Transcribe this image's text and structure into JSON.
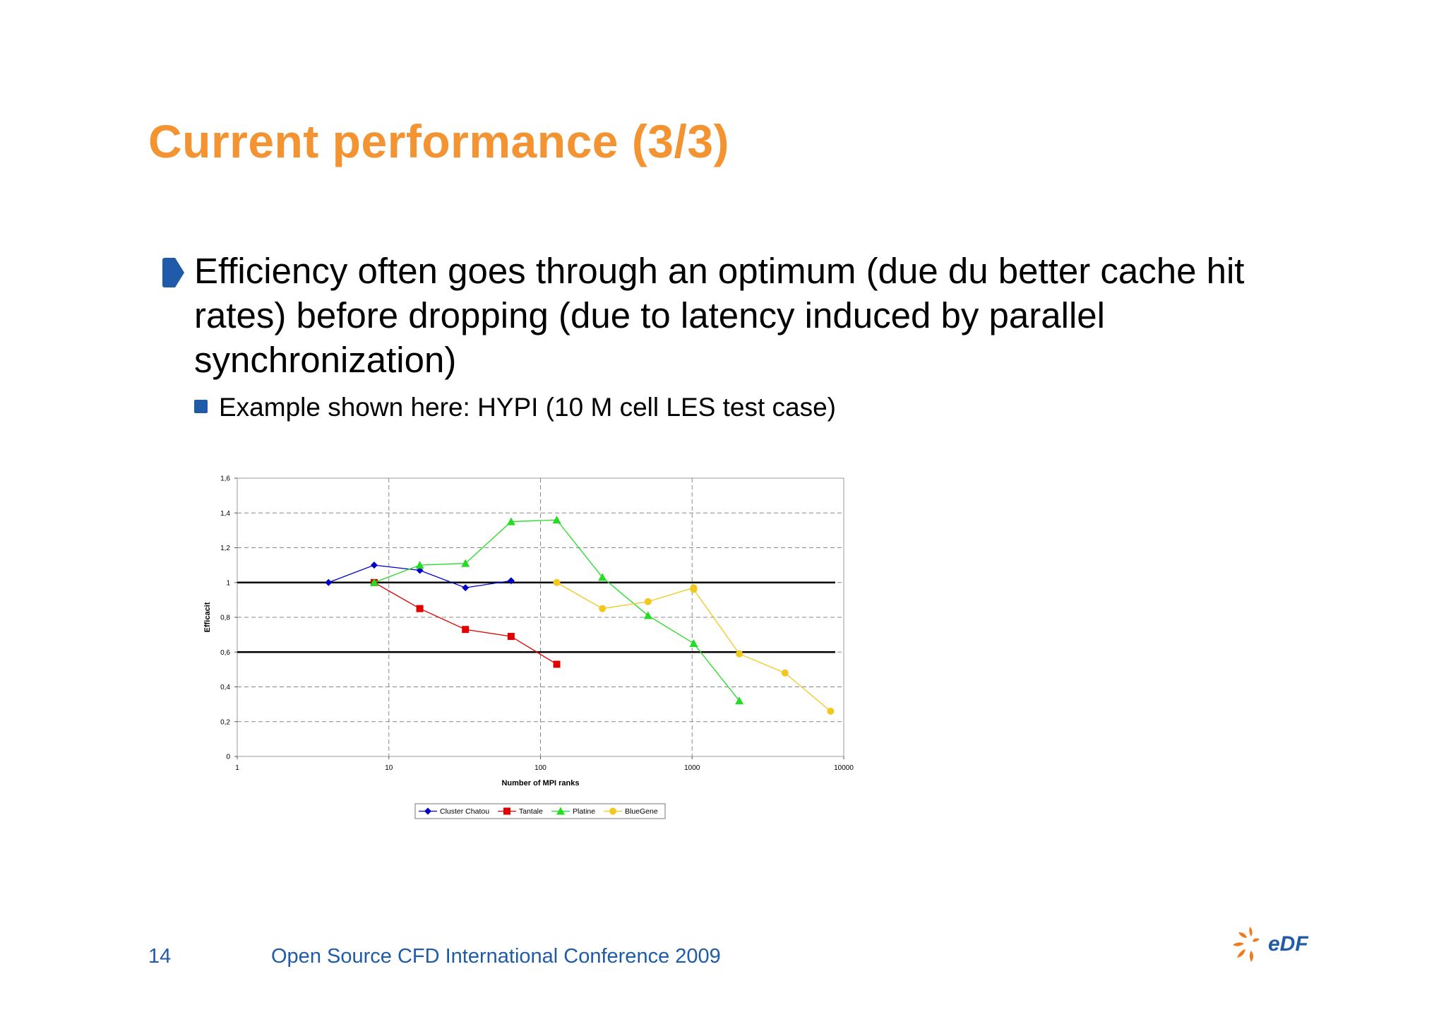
{
  "slide": {
    "title": "Current performance (3/3)",
    "bullet": "Efficiency often goes through an optimum (due du better cache hit rates) before dropping (due to latency induced by parallel synchronization)",
    "sub_bullet": "Example shown here: HYPI (10 M cell LES test case)",
    "page_number": "14",
    "footer": "Open Source CFD International Conference 2009",
    "logo_text": "eDF"
  },
  "colors": {
    "title": "#f39331",
    "footer": "#1f5ba8",
    "cluster_chatou": "#0000cc",
    "tantale": "#e00000",
    "platine": "#22dd22",
    "bluegene": "#f2c81e"
  },
  "chart_data": {
    "type": "line",
    "x_scale": "log",
    "xlim": [
      1,
      10000
    ],
    "ylim": [
      0,
      1.6
    ],
    "xlabel": "Number of MPI ranks",
    "ylabel": "Efficacit",
    "x_ticks": [
      {
        "value": 1,
        "label": "1"
      },
      {
        "value": 10,
        "label": "10"
      },
      {
        "value": 100,
        "label": "100"
      },
      {
        "value": 1000,
        "label": "1000"
      },
      {
        "value": 10000,
        "label": "10000"
      }
    ],
    "y_ticks": [
      {
        "value": 0,
        "label": "0"
      },
      {
        "value": 0.2,
        "label": "0,2"
      },
      {
        "value": 0.4,
        "label": "0,4"
      },
      {
        "value": 0.6,
        "label": "0,6"
      },
      {
        "value": 0.8,
        "label": "0,8"
      },
      {
        "value": 1,
        "label": "1"
      },
      {
        "value": 1.2,
        "label": "1,2"
      },
      {
        "value": 1.4,
        "label": "1,4"
      },
      {
        "value": 1.6,
        "label": "1,6"
      }
    ],
    "reference_lines": [
      1.0,
      0.6
    ],
    "grid": "dashed",
    "legend_position": "bottom",
    "series": [
      {
        "name": "Cluster Chatou",
        "marker": "diamond",
        "color": "#0000cc",
        "x": [
          4,
          8,
          16,
          32,
          64
        ],
        "y": [
          1.0,
          1.1,
          1.07,
          0.97,
          1.01
        ]
      },
      {
        "name": "Tantale",
        "marker": "square",
        "color": "#e00000",
        "x": [
          8,
          16,
          32,
          64,
          128
        ],
        "y": [
          1.0,
          0.85,
          0.73,
          0.69,
          0.53
        ]
      },
      {
        "name": "Platine",
        "marker": "triangle",
        "color": "#22dd22",
        "x": [
          8,
          16,
          32,
          64,
          128,
          256,
          512,
          1024,
          2048
        ],
        "y": [
          1.0,
          1.1,
          1.11,
          1.35,
          1.36,
          1.03,
          0.81,
          0.65,
          0.32
        ]
      },
      {
        "name": "BlueGene",
        "marker": "circle",
        "color": "#f2c81e",
        "x": [
          128,
          256,
          512,
          1024,
          1024,
          2048,
          4096,
          8192
        ],
        "y": [
          1.0,
          0.85,
          0.89,
          0.97,
          0.96,
          0.59,
          0.48,
          0.26
        ]
      }
    ]
  }
}
